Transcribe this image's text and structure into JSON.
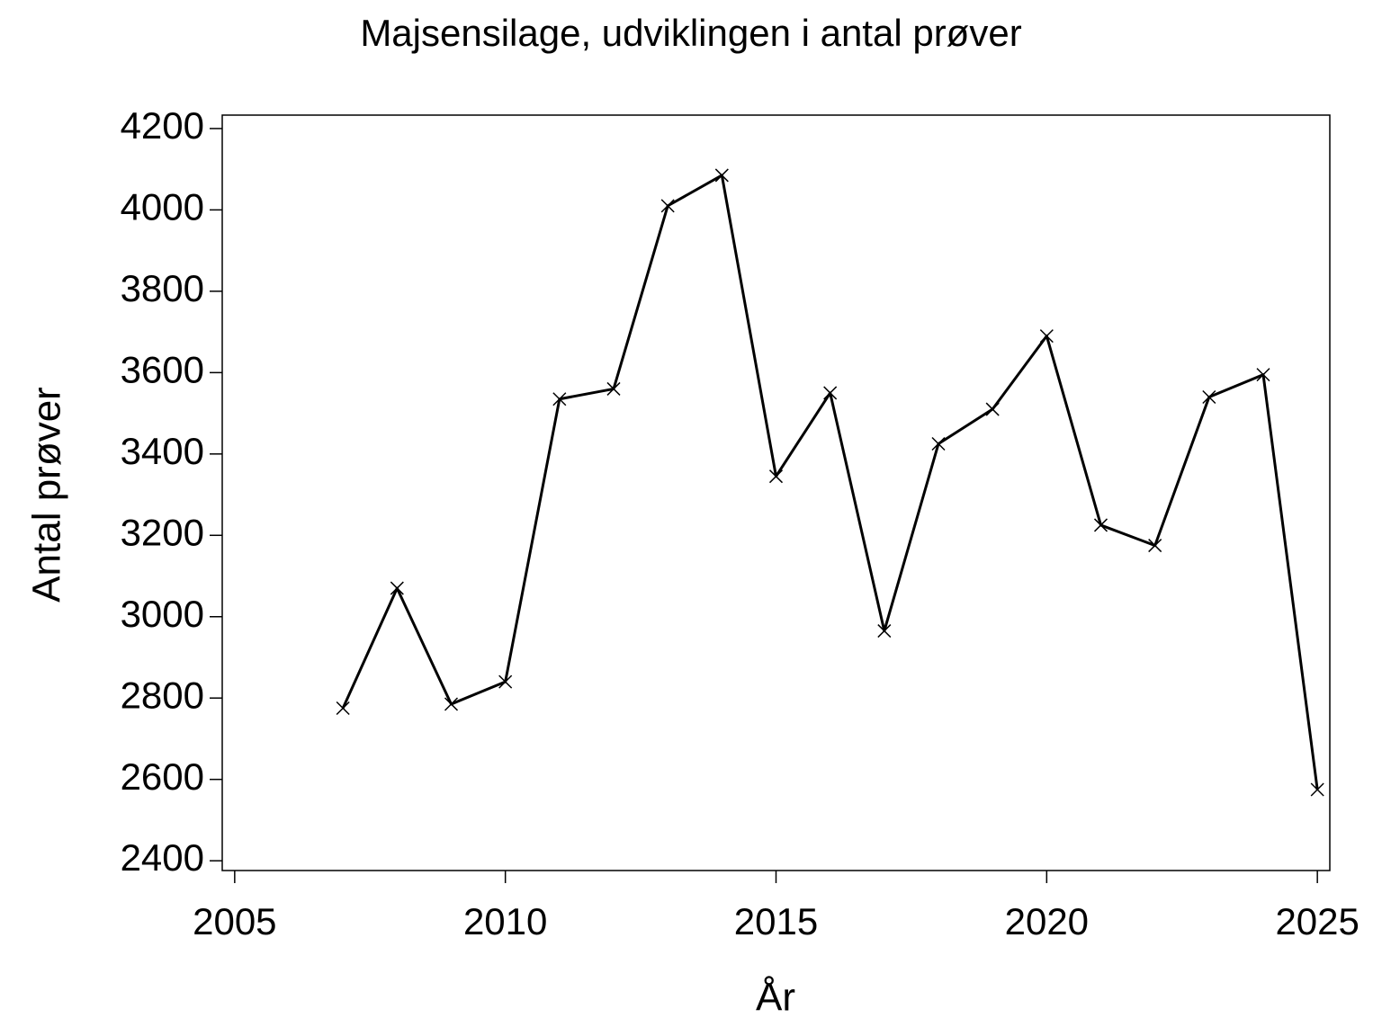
{
  "chart_data": {
    "type": "line",
    "title": "Majsensilage,  udviklingen  i  antal  prøver",
    "x_label": "År",
    "y_label": "Antal  prøver",
    "x": [
      2007,
      2008,
      2009,
      2010,
      2011,
      2012,
      2013,
      2014,
      2015,
      2016,
      2017,
      2018,
      2019,
      2020,
      2021,
      2022,
      2023,
      2024,
      2025
    ],
    "series": [
      {
        "name": "Antal prøver",
        "color": "#000000",
        "values": [
          2775,
          3070,
          2785,
          2840,
          3535,
          3560,
          4010,
          4085,
          3345,
          3550,
          2965,
          3425,
          3510,
          3690,
          3225,
          3175,
          3540,
          3595,
          2575
        ]
      }
    ],
    "xlim": [
      2004.77,
      2025.23
    ],
    "xticks": [
      2005,
      2010,
      2015,
      2020,
      2025
    ],
    "ylim": [
      2376,
      4233
    ],
    "yticks": [
      2400,
      2600,
      2800,
      3000,
      3200,
      3400,
      3600,
      3800,
      4000,
      4200
    ],
    "grid": false
  }
}
